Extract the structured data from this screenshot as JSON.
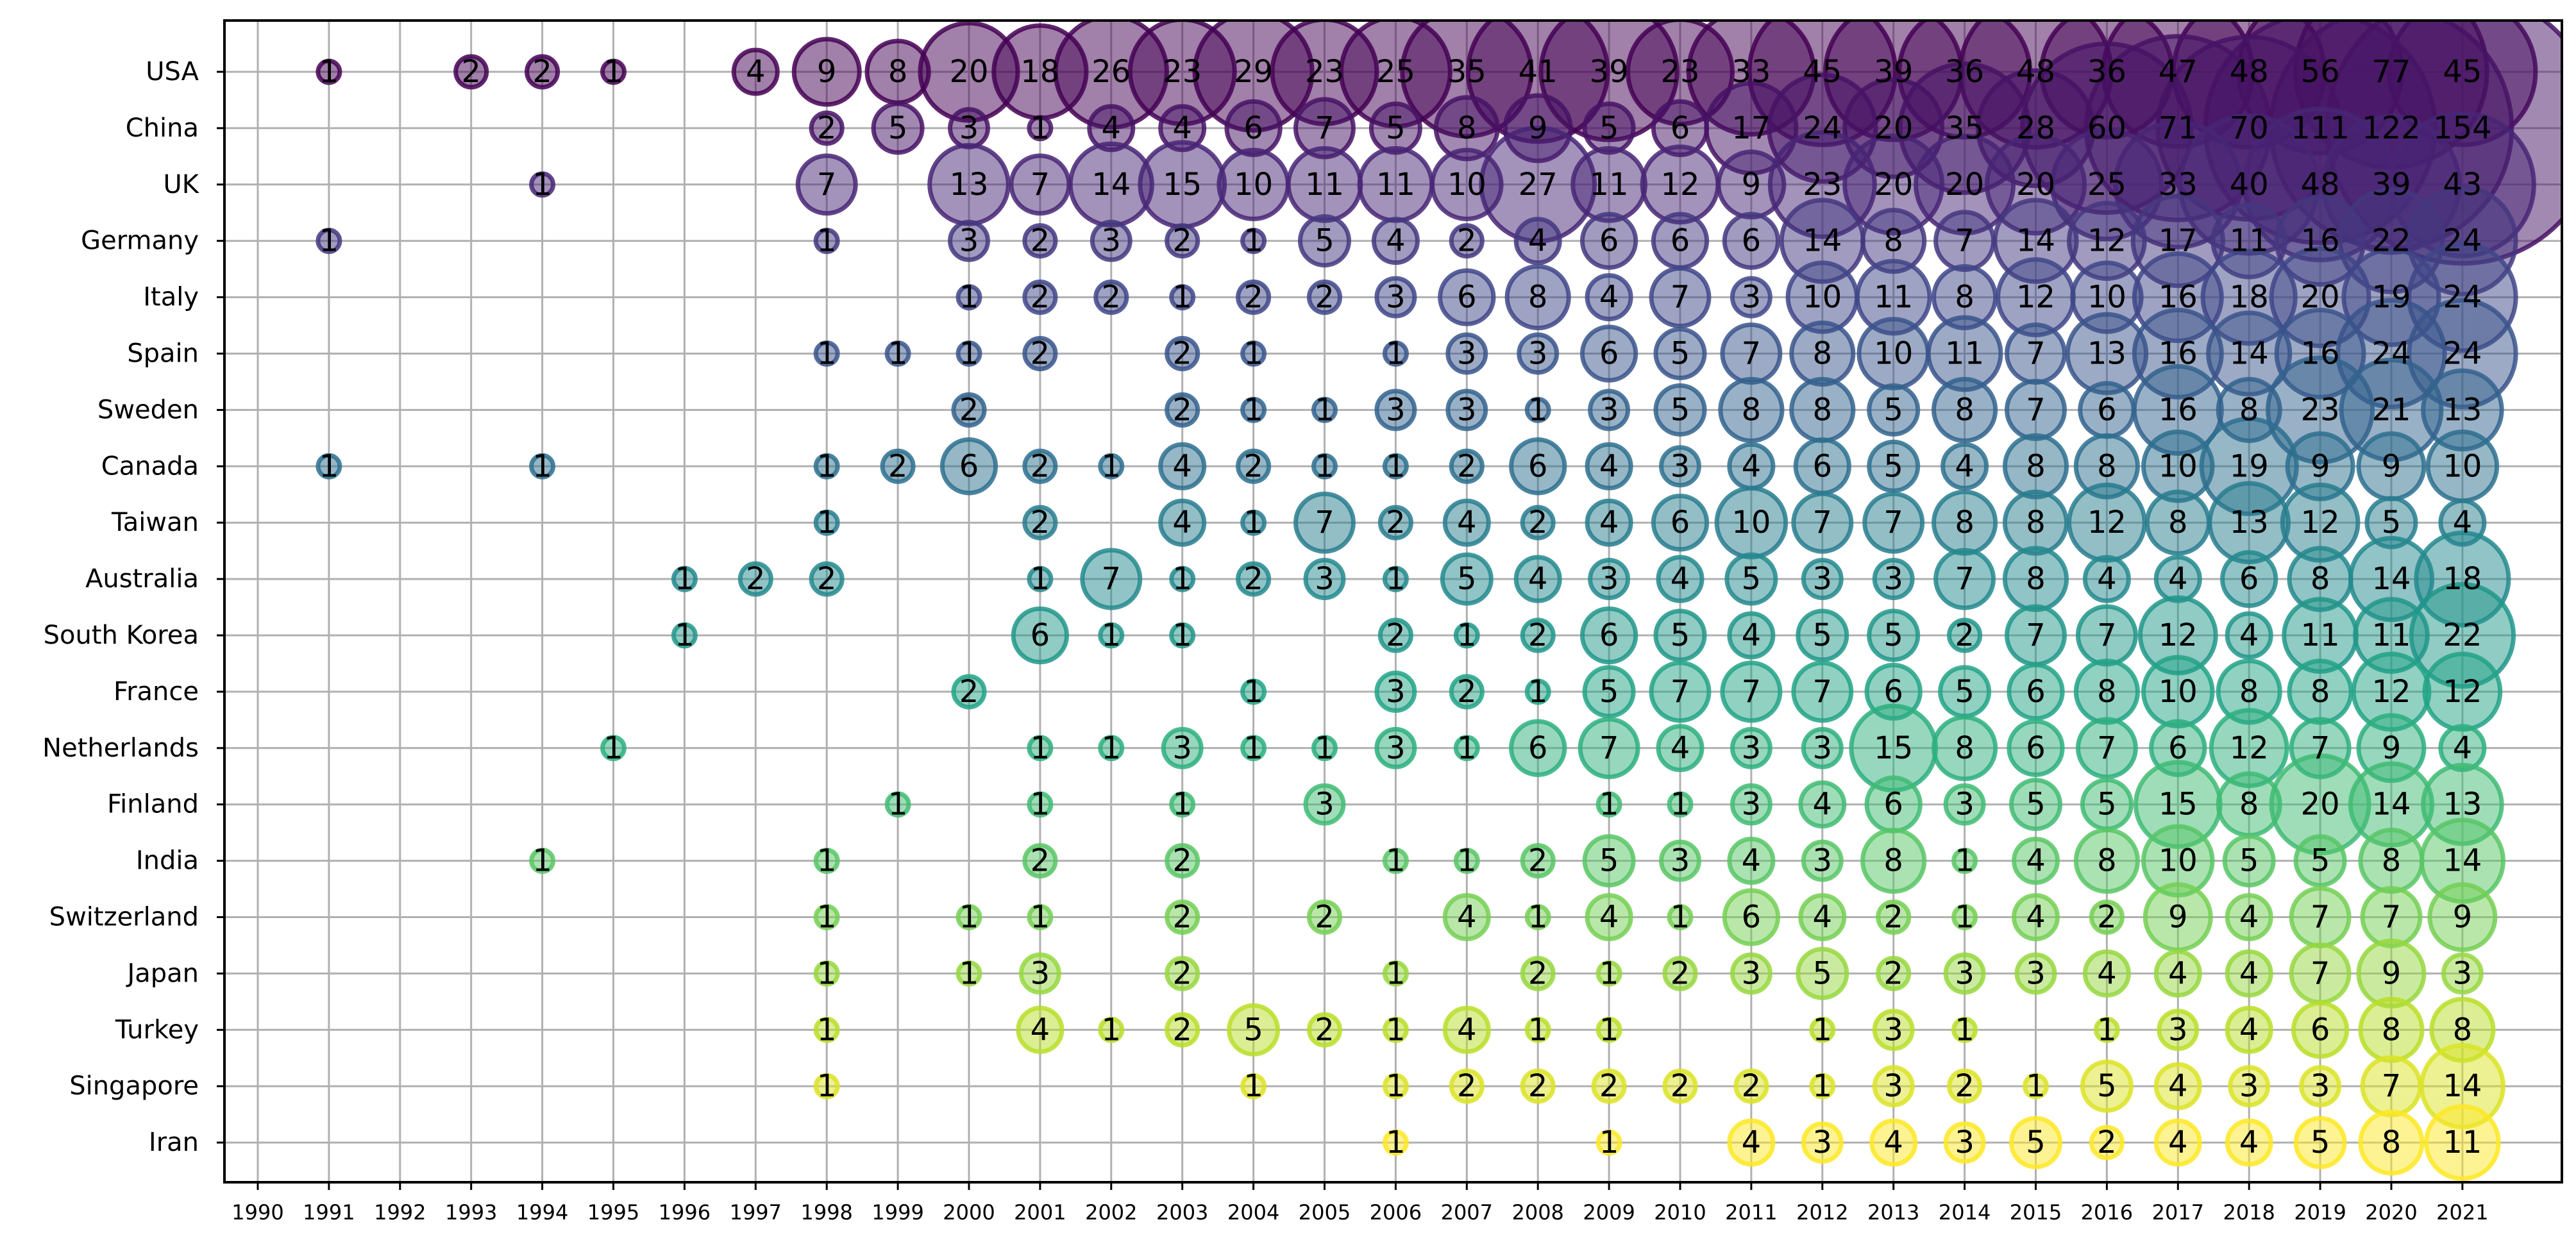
{
  "chart_data": {
    "type": "scatter",
    "title": "",
    "xlabel": "",
    "ylabel": "",
    "grid": true,
    "colormap": "viridis",
    "x": [
      "1990",
      "1991",
      "1992",
      "1993",
      "1994",
      "1995",
      "1996",
      "1997",
      "1998",
      "1999",
      "2000",
      "2001",
      "2002",
      "2003",
      "2004",
      "2005",
      "2006",
      "2007",
      "2008",
      "2009",
      "2010",
      "2011",
      "2012",
      "2013",
      "2014",
      "2015",
      "2016",
      "2017",
      "2018",
      "2019",
      "2020",
      "2021"
    ],
    "y": [
      "USA",
      "China",
      "UK",
      "Germany",
      "Italy",
      "Spain",
      "Sweden",
      "Canada",
      "Taiwan",
      "Australia",
      "South Korea",
      "France",
      "Netherlands",
      "Finland",
      "India",
      "Switzerland",
      "Japan",
      "Turkey",
      "Singapore",
      "Iran"
    ],
    "series": [
      {
        "name": "USA",
        "values": [
          null,
          1,
          null,
          2,
          2,
          1,
          null,
          4,
          9,
          8,
          20,
          18,
          26,
          23,
          29,
          23,
          25,
          35,
          41,
          39,
          23,
          33,
          45,
          39,
          36,
          48,
          36,
          47,
          48,
          56,
          77,
          45
        ]
      },
      {
        "name": "China",
        "values": [
          null,
          null,
          null,
          null,
          null,
          null,
          null,
          null,
          2,
          5,
          3,
          1,
          4,
          4,
          6,
          7,
          5,
          8,
          9,
          5,
          6,
          17,
          24,
          20,
          35,
          28,
          60,
          71,
          70,
          111,
          122,
          154
        ]
      },
      {
        "name": "UK",
        "values": [
          null,
          null,
          null,
          null,
          1,
          null,
          null,
          null,
          7,
          null,
          13,
          7,
          14,
          15,
          10,
          11,
          11,
          10,
          27,
          11,
          12,
          9,
          23,
          20,
          20,
          20,
          25,
          33,
          40,
          48,
          39,
          43
        ]
      },
      {
        "name": "Germany",
        "values": [
          null,
          1,
          null,
          null,
          null,
          null,
          null,
          null,
          1,
          null,
          3,
          2,
          3,
          2,
          1,
          5,
          4,
          2,
          4,
          6,
          6,
          6,
          14,
          8,
          7,
          14,
          12,
          17,
          11,
          16,
          22,
          24
        ]
      },
      {
        "name": "Italy",
        "values": [
          null,
          null,
          null,
          null,
          null,
          null,
          null,
          null,
          null,
          null,
          1,
          2,
          2,
          1,
          2,
          2,
          3,
          6,
          8,
          4,
          7,
          3,
          10,
          11,
          8,
          12,
          10,
          16,
          18,
          20,
          19,
          24
        ]
      },
      {
        "name": "Spain",
        "values": [
          null,
          null,
          null,
          null,
          null,
          null,
          null,
          null,
          1,
          1,
          1,
          2,
          null,
          2,
          1,
          null,
          1,
          3,
          3,
          6,
          5,
          7,
          8,
          10,
          11,
          7,
          13,
          16,
          14,
          16,
          24,
          24
        ]
      },
      {
        "name": "Sweden",
        "values": [
          null,
          null,
          null,
          null,
          null,
          null,
          null,
          null,
          null,
          null,
          2,
          null,
          null,
          2,
          1,
          1,
          3,
          3,
          1,
          3,
          5,
          8,
          8,
          5,
          8,
          7,
          6,
          16,
          8,
          23,
          21,
          13
        ]
      },
      {
        "name": "Canada",
        "values": [
          null,
          1,
          null,
          null,
          1,
          null,
          null,
          null,
          1,
          2,
          6,
          2,
          1,
          4,
          2,
          1,
          1,
          2,
          6,
          4,
          3,
          4,
          6,
          5,
          4,
          8,
          8,
          10,
          19,
          9,
          9,
          10
        ]
      },
      {
        "name": "Taiwan",
        "values": [
          null,
          null,
          null,
          null,
          null,
          null,
          null,
          null,
          1,
          null,
          null,
          2,
          null,
          4,
          1,
          7,
          2,
          4,
          2,
          4,
          6,
          10,
          7,
          7,
          8,
          8,
          12,
          8,
          13,
          12,
          5,
          4
        ]
      },
      {
        "name": "Australia",
        "values": [
          null,
          null,
          null,
          null,
          null,
          null,
          1,
          2,
          2,
          null,
          null,
          1,
          7,
          1,
          2,
          3,
          1,
          5,
          4,
          3,
          4,
          5,
          3,
          3,
          7,
          8,
          4,
          4,
          6,
          8,
          14,
          18
        ]
      },
      {
        "name": "South Korea",
        "values": [
          null,
          null,
          null,
          null,
          null,
          null,
          1,
          null,
          null,
          null,
          null,
          6,
          1,
          1,
          null,
          null,
          2,
          1,
          2,
          6,
          5,
          4,
          5,
          5,
          2,
          7,
          7,
          12,
          4,
          11,
          11,
          22
        ]
      },
      {
        "name": "France",
        "values": [
          null,
          null,
          null,
          null,
          null,
          null,
          null,
          null,
          null,
          null,
          2,
          null,
          null,
          null,
          1,
          null,
          3,
          2,
          1,
          5,
          7,
          7,
          7,
          6,
          5,
          6,
          8,
          10,
          8,
          8,
          12,
          12
        ]
      },
      {
        "name": "Netherlands",
        "values": [
          null,
          null,
          null,
          null,
          null,
          1,
          null,
          null,
          null,
          null,
          null,
          1,
          1,
          3,
          1,
          1,
          3,
          1,
          6,
          7,
          4,
          3,
          3,
          15,
          8,
          6,
          7,
          6,
          12,
          7,
          9,
          4
        ]
      },
      {
        "name": "Finland",
        "values": [
          null,
          null,
          null,
          null,
          null,
          null,
          null,
          null,
          null,
          1,
          null,
          1,
          null,
          1,
          null,
          3,
          null,
          null,
          null,
          1,
          1,
          3,
          4,
          6,
          3,
          5,
          5,
          15,
          8,
          20,
          14,
          13
        ]
      },
      {
        "name": "India",
        "values": [
          null,
          null,
          null,
          null,
          1,
          null,
          null,
          null,
          1,
          null,
          null,
          2,
          null,
          2,
          null,
          null,
          1,
          1,
          2,
          5,
          3,
          4,
          3,
          8,
          1,
          4,
          8,
          10,
          5,
          5,
          8,
          14
        ]
      },
      {
        "name": "Switzerland",
        "values": [
          null,
          null,
          null,
          null,
          null,
          null,
          null,
          null,
          1,
          null,
          1,
          1,
          null,
          2,
          null,
          2,
          null,
          4,
          1,
          4,
          1,
          6,
          4,
          2,
          1,
          4,
          2,
          9,
          4,
          7,
          7,
          9
        ]
      },
      {
        "name": "Japan",
        "values": [
          null,
          null,
          null,
          null,
          null,
          null,
          null,
          null,
          1,
          null,
          1,
          3,
          null,
          2,
          null,
          null,
          1,
          null,
          2,
          1,
          2,
          3,
          5,
          2,
          3,
          3,
          4,
          4,
          4,
          7,
          9,
          3
        ]
      },
      {
        "name": "Turkey",
        "values": [
          null,
          null,
          null,
          null,
          null,
          null,
          null,
          null,
          1,
          null,
          null,
          4,
          1,
          2,
          5,
          2,
          1,
          4,
          1,
          1,
          null,
          null,
          1,
          3,
          1,
          null,
          1,
          3,
          4,
          6,
          8,
          8
        ]
      },
      {
        "name": "Singapore",
        "values": [
          null,
          null,
          null,
          null,
          null,
          null,
          null,
          null,
          1,
          null,
          null,
          null,
          null,
          null,
          1,
          null,
          1,
          2,
          2,
          2,
          2,
          2,
          1,
          3,
          2,
          1,
          5,
          4,
          3,
          3,
          7,
          14
        ]
      },
      {
        "name": "Iran",
        "values": [
          null,
          null,
          null,
          null,
          null,
          null,
          null,
          null,
          null,
          null,
          null,
          null,
          null,
          null,
          null,
          null,
          1,
          null,
          null,
          1,
          null,
          4,
          3,
          4,
          3,
          5,
          2,
          4,
          4,
          5,
          8,
          11
        ]
      }
    ]
  }
}
